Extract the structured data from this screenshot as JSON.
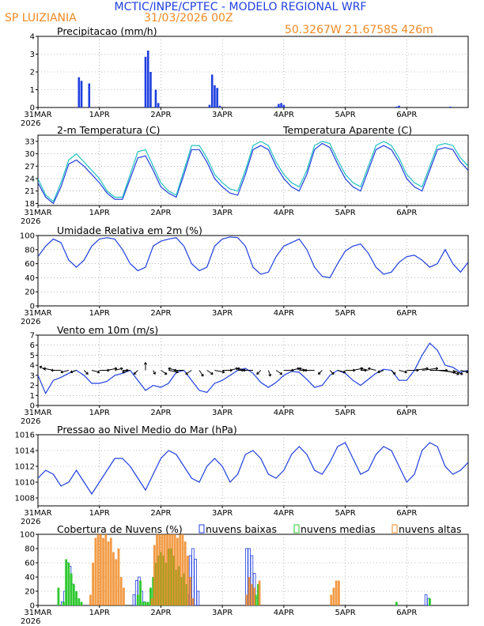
{
  "header": {
    "title": "MCTIC/INPE/CPTEC - MODELO REGIONAL WRF",
    "location": "SP LUIZIANIA",
    "run": "31/03/2026 00Z",
    "coords": "50.3267W 21.6758S 426m",
    "title_color": "#1f3fdf",
    "accent_color": "#f08a24"
  },
  "time_axis": {
    "labels": [
      "31MAR",
      "1APR",
      "2APR",
      "3APR",
      "4APR",
      "5APR",
      "6APR"
    ],
    "year": "2026",
    "hours": [
      0,
      24,
      48,
      72,
      96,
      120,
      144
    ],
    "range": [
      0,
      168
    ]
  },
  "chart_data": [
    {
      "type": "bar",
      "title": "Precipitacao (mm/h)",
      "ylim": [
        0,
        4
      ],
      "yticks": [
        "0",
        "1",
        "2",
        "3",
        "4"
      ],
      "series": [
        {
          "name": "precipitation",
          "color": "#1f3fdf",
          "x": [
            16,
            17,
            20,
            42,
            43,
            44,
            46,
            47,
            67,
            68,
            69,
            70,
            71,
            93,
            94,
            95,
            96,
            140,
            141,
            161
          ],
          "values": [
            1.7,
            1.5,
            1.35,
            2.85,
            3.2,
            2.0,
            1.0,
            0.25,
            0.15,
            1.85,
            1.25,
            1.1,
            0.1,
            0.05,
            0.2,
            0.25,
            0.15,
            0.05,
            0.1,
            0.05
          ]
        }
      ]
    },
    {
      "type": "line",
      "title": "2-m Temperatura (C)",
      "legend": "Temperatura Aparente (C)",
      "ylim": [
        17.5,
        34.5
      ],
      "yticks": [
        "18",
        "21",
        "24",
        "27",
        "30",
        "33"
      ],
      "series": [
        {
          "name": "temperature",
          "color": "#1f3fdf",
          "x": [
            0,
            3,
            6,
            9,
            12,
            15,
            18,
            21,
            24,
            27,
            30,
            33,
            36,
            39,
            42,
            45,
            48,
            51,
            54,
            57,
            60,
            63,
            66,
            69,
            72,
            75,
            78,
            81,
            84,
            87,
            90,
            93,
            96,
            99,
            102,
            105,
            108,
            111,
            114,
            117,
            120,
            123,
            126,
            129,
            132,
            135,
            138,
            141,
            144,
            147,
            150,
            153,
            156,
            159,
            162,
            165,
            168
          ],
          "values": [
            23,
            19.5,
            18,
            22,
            27.5,
            28.5,
            27,
            25,
            23,
            20.5,
            19,
            19,
            24,
            29,
            29.5,
            26,
            22,
            20.5,
            19.5,
            25,
            31,
            31,
            28,
            24,
            22,
            20.5,
            20,
            25,
            31,
            32,
            31,
            27,
            24,
            22,
            21,
            25,
            31,
            32.5,
            31.5,
            27.5,
            24,
            22,
            21,
            26,
            31,
            32,
            31,
            28,
            24,
            22,
            21,
            26,
            31,
            31.5,
            31,
            28,
            26
          ]
        },
        {
          "name": "apparent temperature",
          "color": "#20c0c0",
          "x": [
            0,
            3,
            6,
            9,
            12,
            15,
            18,
            21,
            24,
            27,
            30,
            33,
            36,
            39,
            42,
            45,
            48,
            51,
            54,
            57,
            60,
            63,
            66,
            69,
            72,
            75,
            78,
            81,
            84,
            87,
            90,
            93,
            96,
            99,
            102,
            105,
            108,
            111,
            114,
            117,
            120,
            123,
            126,
            129,
            132,
            135,
            138,
            141,
            144,
            147,
            150,
            153,
            156,
            159,
            162,
            165,
            168
          ],
          "values": [
            24,
            20,
            18.5,
            23,
            28.5,
            30,
            28,
            26,
            24,
            21,
            19.5,
            19.5,
            25,
            30.5,
            31,
            27,
            23,
            21,
            20,
            26,
            32,
            32,
            29,
            25,
            23,
            21.5,
            21,
            26,
            32,
            33,
            32,
            28,
            25,
            23,
            22,
            26,
            32,
            33,
            32.5,
            28.5,
            25,
            23,
            22,
            27,
            32,
            33,
            32,
            29,
            25,
            23,
            22,
            27,
            32,
            32.5,
            32,
            29,
            27
          ]
        }
      ]
    },
    {
      "type": "line",
      "title": "Umidade Relativa em 2m (%)",
      "ylim": [
        0,
        100
      ],
      "yticks": [
        "0",
        "20",
        "40",
        "60",
        "80",
        "100"
      ],
      "series": [
        {
          "name": "relative humidity",
          "color": "#1f3fdf",
          "x": [
            0,
            3,
            6,
            9,
            12,
            15,
            18,
            21,
            24,
            27,
            30,
            33,
            36,
            39,
            42,
            45,
            48,
            51,
            54,
            57,
            60,
            63,
            66,
            69,
            72,
            75,
            78,
            81,
            84,
            87,
            90,
            93,
            96,
            99,
            102,
            105,
            108,
            111,
            114,
            117,
            120,
            123,
            126,
            129,
            132,
            135,
            138,
            141,
            144,
            147,
            150,
            153,
            156,
            159,
            162,
            165,
            168
          ],
          "values": [
            70,
            85,
            95,
            90,
            65,
            55,
            65,
            85,
            95,
            97,
            95,
            80,
            60,
            50,
            55,
            85,
            92,
            95,
            97,
            85,
            60,
            50,
            55,
            85,
            95,
            98,
            97,
            85,
            55,
            45,
            48,
            70,
            85,
            90,
            95,
            80,
            55,
            42,
            40,
            60,
            78,
            85,
            88,
            75,
            55,
            45,
            48,
            62,
            70,
            72,
            65,
            55,
            60,
            80,
            60,
            48,
            62
          ]
        }
      ]
    },
    {
      "type": "line",
      "title": "Vento em 10m (m/s)",
      "ylim": [
        0,
        7
      ],
      "yticks": [
        "0",
        "1",
        "2",
        "3",
        "4",
        "5",
        "6",
        "7"
      ],
      "series": [
        {
          "name": "wind speed",
          "color": "#1f3fdf",
          "x": [
            0,
            3,
            6,
            9,
            12,
            15,
            18,
            21,
            24,
            27,
            30,
            33,
            36,
            39,
            42,
            45,
            48,
            51,
            54,
            57,
            60,
            63,
            66,
            69,
            72,
            75,
            78,
            81,
            84,
            87,
            90,
            93,
            96,
            99,
            102,
            105,
            108,
            111,
            114,
            117,
            120,
            123,
            126,
            129,
            132,
            135,
            138,
            141,
            144,
            147,
            150,
            153,
            156,
            159,
            162,
            165,
            168
          ],
          "values": [
            3,
            1.2,
            2.5,
            2.8,
            3.2,
            3.5,
            3,
            2.2,
            2.2,
            2.4,
            3,
            3.2,
            3.5,
            2.5,
            1.5,
            2,
            1.8,
            2.2,
            3.3,
            3.5,
            2.5,
            1.5,
            1.3,
            2.2,
            2.5,
            3,
            3.5,
            3.7,
            3.2,
            2.3,
            1.8,
            2.3,
            3,
            3.4,
            3.3,
            2.6,
            1.8,
            2,
            3,
            3.5,
            3.2,
            2.5,
            2,
            2.6,
            3.2,
            3.6,
            3.5,
            2.5,
            2.5,
            3.5,
            5,
            6.2,
            5.5,
            4,
            3.8,
            3.3,
            3.5
          ]
        }
      ],
      "vectors": {
        "x": [
          0,
          3,
          6,
          9,
          12,
          15,
          18,
          21,
          24,
          27,
          30,
          33,
          36,
          39,
          42,
          45,
          48,
          51,
          54,
          57,
          60,
          63,
          66,
          69,
          72,
          75,
          78,
          81,
          84,
          87,
          90,
          93,
          96,
          99,
          102,
          105,
          108,
          111,
          114,
          117,
          120,
          123,
          126,
          129,
          132,
          135,
          138,
          141,
          144,
          147,
          150,
          153,
          156,
          159,
          162,
          165,
          168
        ],
        "u": [
          -2,
          -1.5,
          -2.5,
          -2.5,
          -2,
          -1.5,
          1,
          2,
          2.5,
          2.5,
          2,
          1.5,
          -2,
          -1,
          0,
          0.5,
          1.5,
          2.5,
          -2,
          -2.5,
          -1.5,
          1,
          1.5,
          2.5,
          2.5,
          2,
          1.5,
          -2,
          -2.5,
          -1,
          0.5,
          1.5,
          2.5,
          2,
          1.5,
          -2,
          -2.5,
          -1,
          1,
          2,
          2.5,
          2.5,
          1.5,
          -2,
          -2,
          -1.5,
          1,
          2,
          3,
          3.5,
          4,
          4.5,
          4.5,
          3.5,
          2.5,
          2,
          1.5
        ],
        "v": [
          0.5,
          1,
          0.5,
          0,
          -0.5,
          -0.5,
          -1,
          -0.5,
          0,
          0.5,
          0.5,
          0,
          -0.5,
          -1,
          2,
          -1,
          -1,
          -0.5,
          0.5,
          0,
          -1,
          -1.5,
          -1,
          -0.5,
          0,
          0.5,
          0,
          0.5,
          0,
          -1,
          -1.5,
          -1,
          0,
          0.5,
          0,
          0.5,
          0,
          -1,
          -1,
          -0.5,
          0,
          0.5,
          0,
          0.5,
          0.5,
          -0.5,
          -1,
          -0.5,
          0,
          0.5,
          0.5,
          0,
          -0.5,
          -1,
          -1,
          -0.5,
          0
        ]
      }
    },
    {
      "type": "line",
      "title": "Pressao ao Nivel Medio do Mar (hPa)",
      "ylim": [
        1007,
        1016
      ],
      "yticks": [
        "1008",
        "1010",
        "1012",
        "1014",
        "1016"
      ],
      "series": [
        {
          "name": "sea level pressure",
          "color": "#1f3fdf",
          "x": [
            0,
            3,
            6,
            9,
            12,
            15,
            18,
            21,
            24,
            27,
            30,
            33,
            36,
            39,
            42,
            45,
            48,
            51,
            54,
            57,
            60,
            63,
            66,
            69,
            72,
            75,
            78,
            81,
            84,
            87,
            90,
            93,
            96,
            99,
            102,
            105,
            108,
            111,
            114,
            117,
            120,
            123,
            126,
            129,
            132,
            135,
            138,
            141,
            144,
            147,
            150,
            153,
            156,
            159,
            162,
            165,
            168
          ],
          "values": [
            1010.5,
            1011.5,
            1011,
            1009.5,
            1010,
            1011.5,
            1010,
            1008.5,
            1010,
            1011.5,
            1013,
            1013,
            1012,
            1010.5,
            1009,
            1011,
            1013,
            1014,
            1013.5,
            1012,
            1010.5,
            1010,
            1012,
            1013,
            1012,
            1010,
            1011,
            1013.5,
            1014,
            1013,
            1011,
            1010.5,
            1011.5,
            1013.5,
            1014.5,
            1013.5,
            1011.5,
            1011,
            1012.5,
            1014.5,
            1015,
            1013,
            1011,
            1011.5,
            1013.5,
            1014.5,
            1014,
            1012,
            1010,
            1011,
            1014,
            1015,
            1014.5,
            1012,
            1011,
            1011.5,
            1012.5
          ]
        }
      ]
    },
    {
      "type": "bar",
      "title": "Cobertura de Nuvens (%)",
      "ylim": [
        0,
        100
      ],
      "yticks": [
        "0",
        "20",
        "40",
        "60",
        "80",
        "100"
      ],
      "legend": [
        "nuvens baixas",
        "nuvens medias",
        "nuvens altas"
      ],
      "series": [
        {
          "name": "nuvens baixas",
          "color": "#1f3fdf",
          "x": [
            10,
            11,
            12,
            13,
            14,
            15,
            38,
            39,
            40,
            41,
            42,
            59,
            60,
            61,
            62,
            63,
            82,
            83,
            84,
            85,
            86,
            152,
            153
          ],
          "values": [
            5,
            20,
            60,
            55,
            30,
            10,
            15,
            35,
            40,
            20,
            5,
            15,
            70,
            80,
            65,
            20,
            80,
            80,
            70,
            45,
            10,
            15,
            10
          ]
        },
        {
          "name": "nuvens medias",
          "color": "#2ec82e",
          "x": [
            8,
            10,
            11,
            12,
            13,
            14,
            15,
            16,
            17,
            39,
            40,
            41,
            42,
            43,
            44,
            45,
            46,
            47,
            48,
            49,
            50,
            51,
            52,
            53,
            54,
            55,
            56,
            57,
            58,
            85,
            86,
            140,
            153
          ],
          "values": [
            25,
            5,
            65,
            60,
            45,
            30,
            20,
            10,
            5,
            15,
            35,
            5,
            5,
            5,
            25,
            40,
            60,
            70,
            75,
            70,
            60,
            80,
            80,
            70,
            50,
            55,
            40,
            45,
            30,
            15,
            30,
            5,
            10
          ]
        },
        {
          "name": "nuvens altas",
          "color": "#f08a24",
          "x": [
            20,
            21,
            22,
            23,
            24,
            25,
            26,
            27,
            28,
            29,
            30,
            31,
            32,
            33,
            44,
            45,
            46,
            47,
            48,
            49,
            50,
            51,
            52,
            53,
            54,
            55,
            56,
            57,
            58,
            59,
            60,
            81,
            82,
            83,
            84,
            86,
            114,
            115,
            116,
            117
          ],
          "values": [
            15,
            60,
            95,
            100,
            100,
            95,
            100,
            90,
            95,
            75,
            65,
            80,
            40,
            25,
            10,
            85,
            100,
            100,
            100,
            100,
            100,
            100,
            100,
            100,
            95,
            100,
            100,
            90,
            70,
            40,
            10,
            15,
            40,
            30,
            25,
            35,
            15,
            25,
            35,
            35
          ]
        }
      ]
    }
  ]
}
